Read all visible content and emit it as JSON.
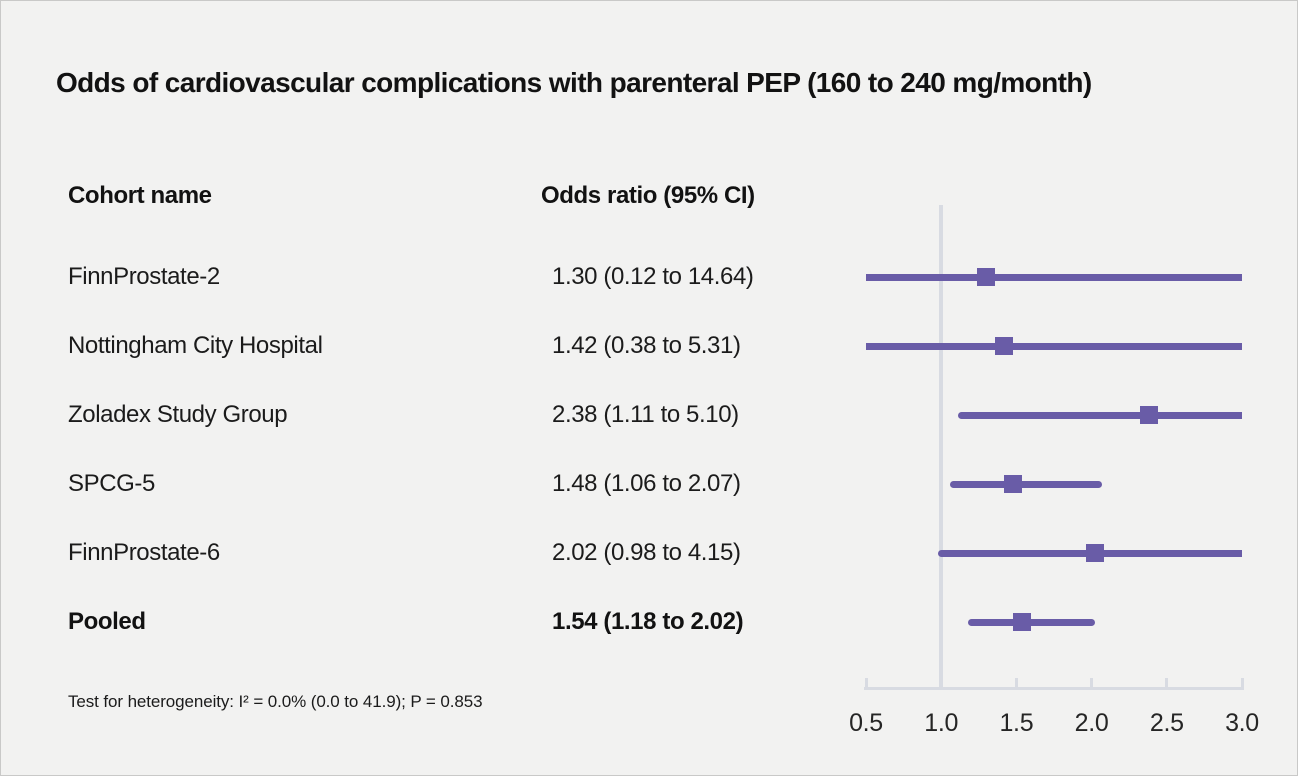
{
  "title": "Odds of cardiovascular complications with parenteral PEP (160 to 240 mg/month)",
  "columns": {
    "cohort": "Cohort name",
    "odds_ratio": "Odds ratio (95% CI)"
  },
  "footnote": "Test for heterogeneity: I² = 0.0% (0.0 to 41.9); P = 0.853",
  "chart_data": {
    "type": "forest",
    "title": "Odds of cardiovascular complications with parenteral PEP (160 to 240 mg/month)",
    "xlabel": "Odds ratio (95% CI)",
    "axis": {
      "min": 0.5,
      "max": 3.0,
      "scale": "linear",
      "ticks": [
        0.5,
        1.0,
        1.5,
        2.0,
        2.5,
        3.0
      ],
      "tick_labels": [
        "0.5",
        "1.0",
        "1.5",
        "2.0",
        "2.5",
        "3.0"
      ],
      "reference_line": 1.0,
      "grid": false
    },
    "rows": [
      {
        "name": "FinnProstate-2",
        "label": "1.30 (0.12 to 14.64)",
        "or": 1.3,
        "ci_low": 0.12,
        "ci_high": 14.64,
        "pooled": false
      },
      {
        "name": "Nottingham City Hospital",
        "label": "1.42 (0.38 to 5.31)",
        "or": 1.42,
        "ci_low": 0.38,
        "ci_high": 5.31,
        "pooled": false
      },
      {
        "name": "Zoladex Study Group",
        "label": "2.38 (1.11 to 5.10)",
        "or": 2.38,
        "ci_low": 1.11,
        "ci_high": 5.1,
        "pooled": false
      },
      {
        "name": "SPCG-5",
        "label": "1.48 (1.06 to 2.07)",
        "or": 1.48,
        "ci_low": 1.06,
        "ci_high": 2.07,
        "pooled": false
      },
      {
        "name": "FinnProstate-6",
        "label": "2.02 (0.98 to 4.15)",
        "or": 2.02,
        "ci_low": 0.98,
        "ci_high": 4.15,
        "pooled": false
      },
      {
        "name": "Pooled",
        "label": "1.54 (1.18 to 2.02)",
        "or": 1.54,
        "ci_low": 1.18,
        "ci_high": 2.02,
        "pooled": true
      }
    ],
    "colors": {
      "marker": "#695CA7",
      "axis_line": "#D8DBE2",
      "text": "#1B1B1B",
      "background": "#F2F2F1"
    }
  }
}
